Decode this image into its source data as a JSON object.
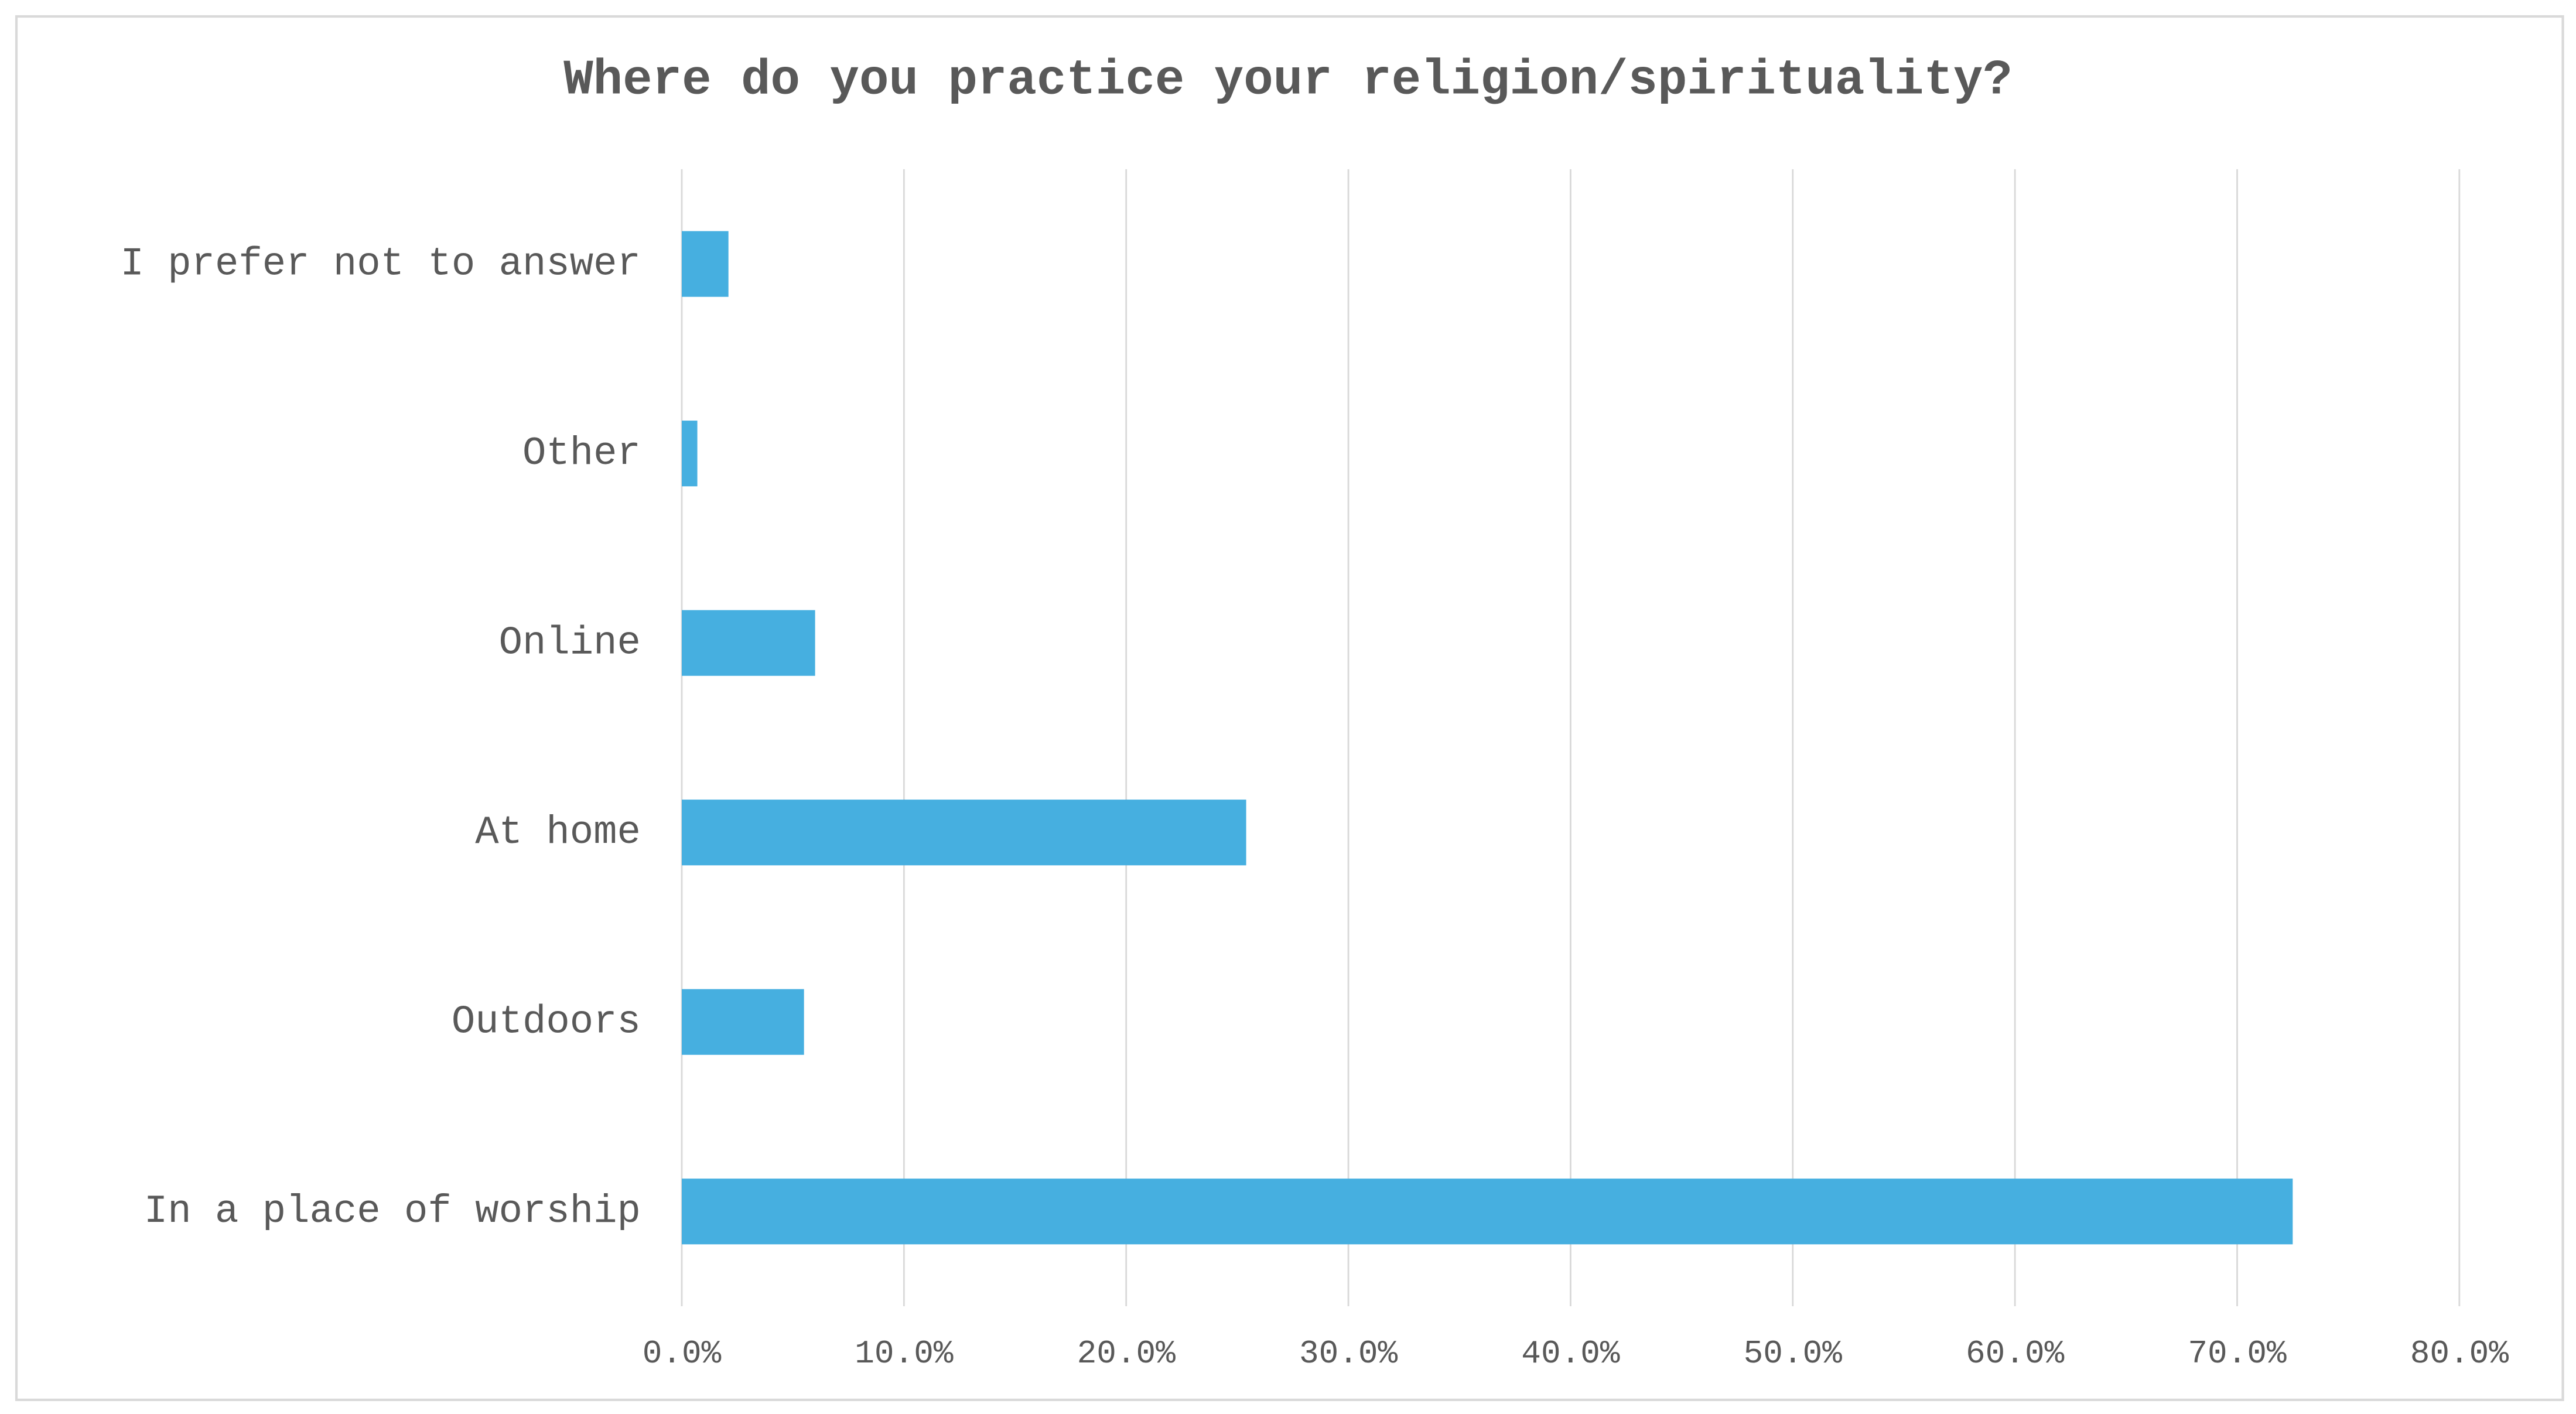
{
  "chart_data": {
    "type": "bar",
    "orientation": "horizontal",
    "title": "Where do you practice your religion/spirituality?",
    "categories": [
      "I prefer not to answer",
      "Other",
      "Online",
      "At home",
      "Outdoors",
      "In a place of worship"
    ],
    "values": [
      2.1,
      0.7,
      6.0,
      25.4,
      5.5,
      72.5
    ],
    "color": "#46afe0",
    "xlim": [
      0,
      80
    ],
    "xticks": [
      {
        "value": 0,
        "label": "0.0%"
      },
      {
        "value": 10,
        "label": "10.0%"
      },
      {
        "value": 20,
        "label": "20.0%"
      },
      {
        "value": 30,
        "label": "30.0%"
      },
      {
        "value": 40,
        "label": "40.0%"
      },
      {
        "value": 50,
        "label": "50.0%"
      },
      {
        "value": 60,
        "label": "60.0%"
      },
      {
        "value": 70,
        "label": "70.0%"
      },
      {
        "value": 80,
        "label": "80.0%"
      }
    ],
    "grid": true
  }
}
